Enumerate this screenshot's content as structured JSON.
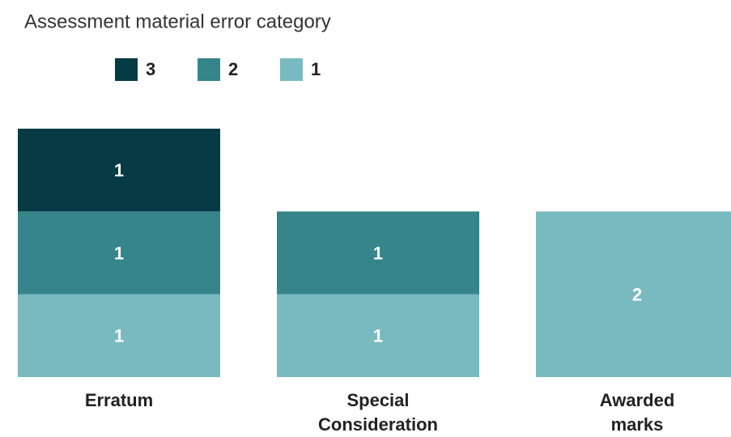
{
  "chart_data": {
    "type": "stacked-bar",
    "title": "Assessment material error category",
    "categories": [
      "Erratum",
      "Special Consideration",
      "Awarded marks"
    ],
    "series": [
      {
        "name": "1",
        "color": "#79bac0",
        "values": [
          1,
          1,
          2
        ]
      },
      {
        "name": "2",
        "color": "#35858a",
        "values": [
          1,
          1,
          0
        ]
      },
      {
        "name": "3",
        "color": "#063a44",
        "values": [
          1,
          0,
          0
        ]
      }
    ]
  }
}
